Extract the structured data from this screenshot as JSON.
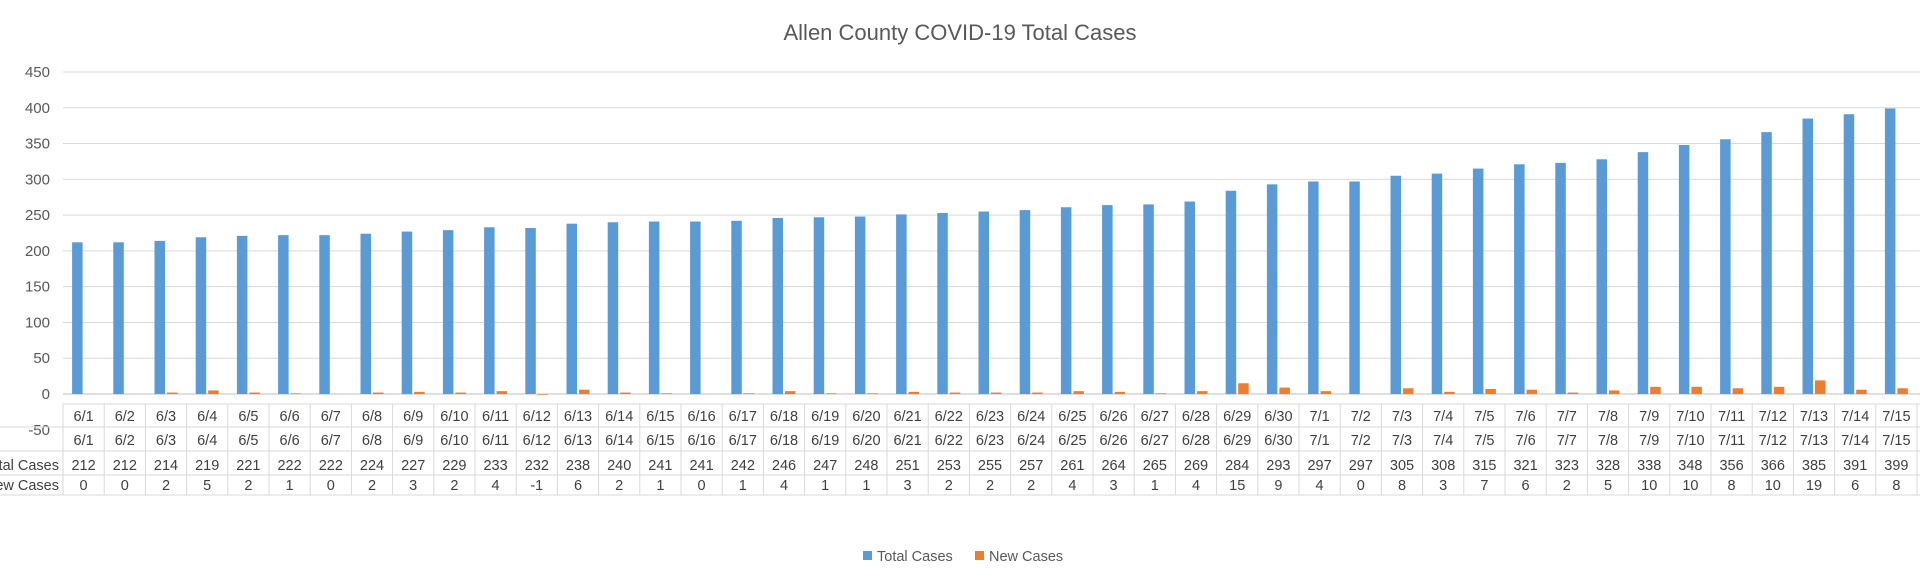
{
  "chart_data": {
    "type": "bar",
    "title": "Allen County COVID-19 Total Cases",
    "ylim": [
      -50,
      450
    ],
    "yticks": [
      -50,
      0,
      50,
      100,
      150,
      200,
      250,
      300,
      350,
      400,
      450
    ],
    "grid": true,
    "legend": "bottom",
    "categories": [
      "6/1",
      "6/2",
      "6/3",
      "6/4",
      "6/5",
      "6/6",
      "6/7",
      "6/8",
      "6/9",
      "6/10",
      "6/11",
      "6/12",
      "6/13",
      "6/14",
      "6/15",
      "6/16",
      "6/17",
      "6/18",
      "6/19",
      "6/20",
      "6/21",
      "6/22",
      "6/23",
      "6/24",
      "6/25",
      "6/26",
      "6/27",
      "6/28",
      "6/29",
      "6/30",
      "7/1",
      "7/2",
      "7/3",
      "7/4",
      "7/5",
      "7/6",
      "7/7",
      "7/8",
      "7/9",
      "7/10",
      "7/11",
      "7/12",
      "7/13",
      "7/14",
      "7/15"
    ],
    "series": [
      {
        "name": "Total Cases",
        "table_label": "otal Cases",
        "color": "#5b9bd5",
        "values": [
          212,
          212,
          214,
          219,
          221,
          222,
          222,
          224,
          227,
          229,
          233,
          232,
          238,
          240,
          241,
          241,
          242,
          246,
          247,
          248,
          251,
          253,
          255,
          257,
          261,
          264,
          265,
          269,
          284,
          293,
          297,
          297,
          305,
          308,
          315,
          321,
          323,
          328,
          338,
          348,
          356,
          366,
          385,
          391,
          399
        ]
      },
      {
        "name": "New Cases",
        "table_label": "ew Cases",
        "color": "#ed7d31",
        "values": [
          0,
          0,
          2,
          5,
          2,
          1,
          0,
          2,
          3,
          2,
          4,
          -1,
          6,
          2,
          1,
          0,
          1,
          4,
          1,
          1,
          3,
          2,
          2,
          2,
          4,
          3,
          1,
          4,
          15,
          9,
          4,
          0,
          8,
          3,
          7,
          6,
          2,
          5,
          10,
          10,
          8,
          10,
          19,
          6,
          8
        ]
      }
    ]
  }
}
